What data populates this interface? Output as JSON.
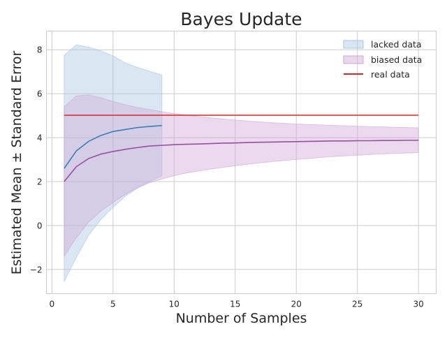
{
  "chart_data": {
    "type": "line",
    "title": "Bayes Update",
    "xlabel": "Number of Samples",
    "ylabel": "Estimated Mean ± Standard Error",
    "xlim": [
      -0.45,
      31.45
    ],
    "ylim": [
      -3.1,
      8.85
    ],
    "xticks": [
      0,
      5,
      10,
      15,
      20,
      25,
      30
    ],
    "yticks": [
      -2,
      0,
      2,
      4,
      6,
      8
    ],
    "xtick_labels": [
      "0",
      "5",
      "10",
      "15",
      "20",
      "25",
      "30"
    ],
    "ytick_labels": [
      "−2",
      "0",
      "2",
      "4",
      "6",
      "8"
    ],
    "grid": true,
    "legend_position": "top-right",
    "legend": [
      {
        "label": "lacked data",
        "kind": "band",
        "color": "#a8c6e2"
      },
      {
        "label": "biased data",
        "kind": "band",
        "color": "#cfa6d4"
      },
      {
        "label": "real data",
        "kind": "line",
        "color": "#d62728"
      }
    ],
    "series": [
      {
        "name": "lacked data",
        "color": "#377eb8",
        "band_color": "#a8c6e2",
        "x": [
          1,
          2,
          3,
          4,
          5,
          6,
          7,
          8,
          9
        ],
        "mean": [
          2.6,
          3.4,
          3.83,
          4.1,
          4.28,
          4.37,
          4.46,
          4.51,
          4.55
        ],
        "upper": [
          7.75,
          8.23,
          8.12,
          7.95,
          7.72,
          7.4,
          7.2,
          7.02,
          6.85
        ],
        "lower": [
          -2.55,
          -1.45,
          -0.45,
          0.27,
          0.83,
          1.33,
          1.7,
          2.0,
          2.27
        ]
      },
      {
        "name": "biased data",
        "color": "#984ea3",
        "band_color": "#cfa6d4",
        "x": [
          1,
          2,
          3,
          4,
          5,
          6,
          7,
          8,
          9,
          10,
          11,
          12,
          13,
          14,
          15,
          16,
          17,
          18,
          19,
          20,
          21,
          22,
          23,
          24,
          25,
          26,
          27,
          28,
          29,
          30
        ],
        "mean": [
          2.0,
          2.68,
          3.05,
          3.25,
          3.37,
          3.47,
          3.55,
          3.62,
          3.65,
          3.68,
          3.7,
          3.71,
          3.73,
          3.75,
          3.76,
          3.78,
          3.79,
          3.8,
          3.81,
          3.82,
          3.83,
          3.84,
          3.85,
          3.85,
          3.86,
          3.86,
          3.87,
          3.87,
          3.88,
          3.88
        ],
        "upper": [
          5.4,
          5.9,
          5.95,
          5.82,
          5.65,
          5.5,
          5.37,
          5.28,
          5.18,
          5.1,
          5.02,
          4.96,
          4.9,
          4.85,
          4.8,
          4.76,
          4.72,
          4.68,
          4.65,
          4.62,
          4.6,
          4.58,
          4.56,
          4.54,
          4.52,
          4.5,
          4.49,
          4.47,
          4.46,
          4.45
        ],
        "lower": [
          -1.4,
          -0.55,
          0.15,
          0.65,
          1.05,
          1.42,
          1.72,
          1.95,
          2.12,
          2.27,
          2.39,
          2.48,
          2.57,
          2.65,
          2.72,
          2.79,
          2.85,
          2.91,
          2.96,
          3.01,
          3.05,
          3.1,
          3.14,
          3.17,
          3.2,
          3.23,
          3.26,
          3.28,
          3.3,
          3.32
        ]
      },
      {
        "name": "real data",
        "color": "#d62728",
        "x": [
          1,
          30
        ],
        "mean": [
          5.02,
          5.02
        ]
      }
    ]
  }
}
